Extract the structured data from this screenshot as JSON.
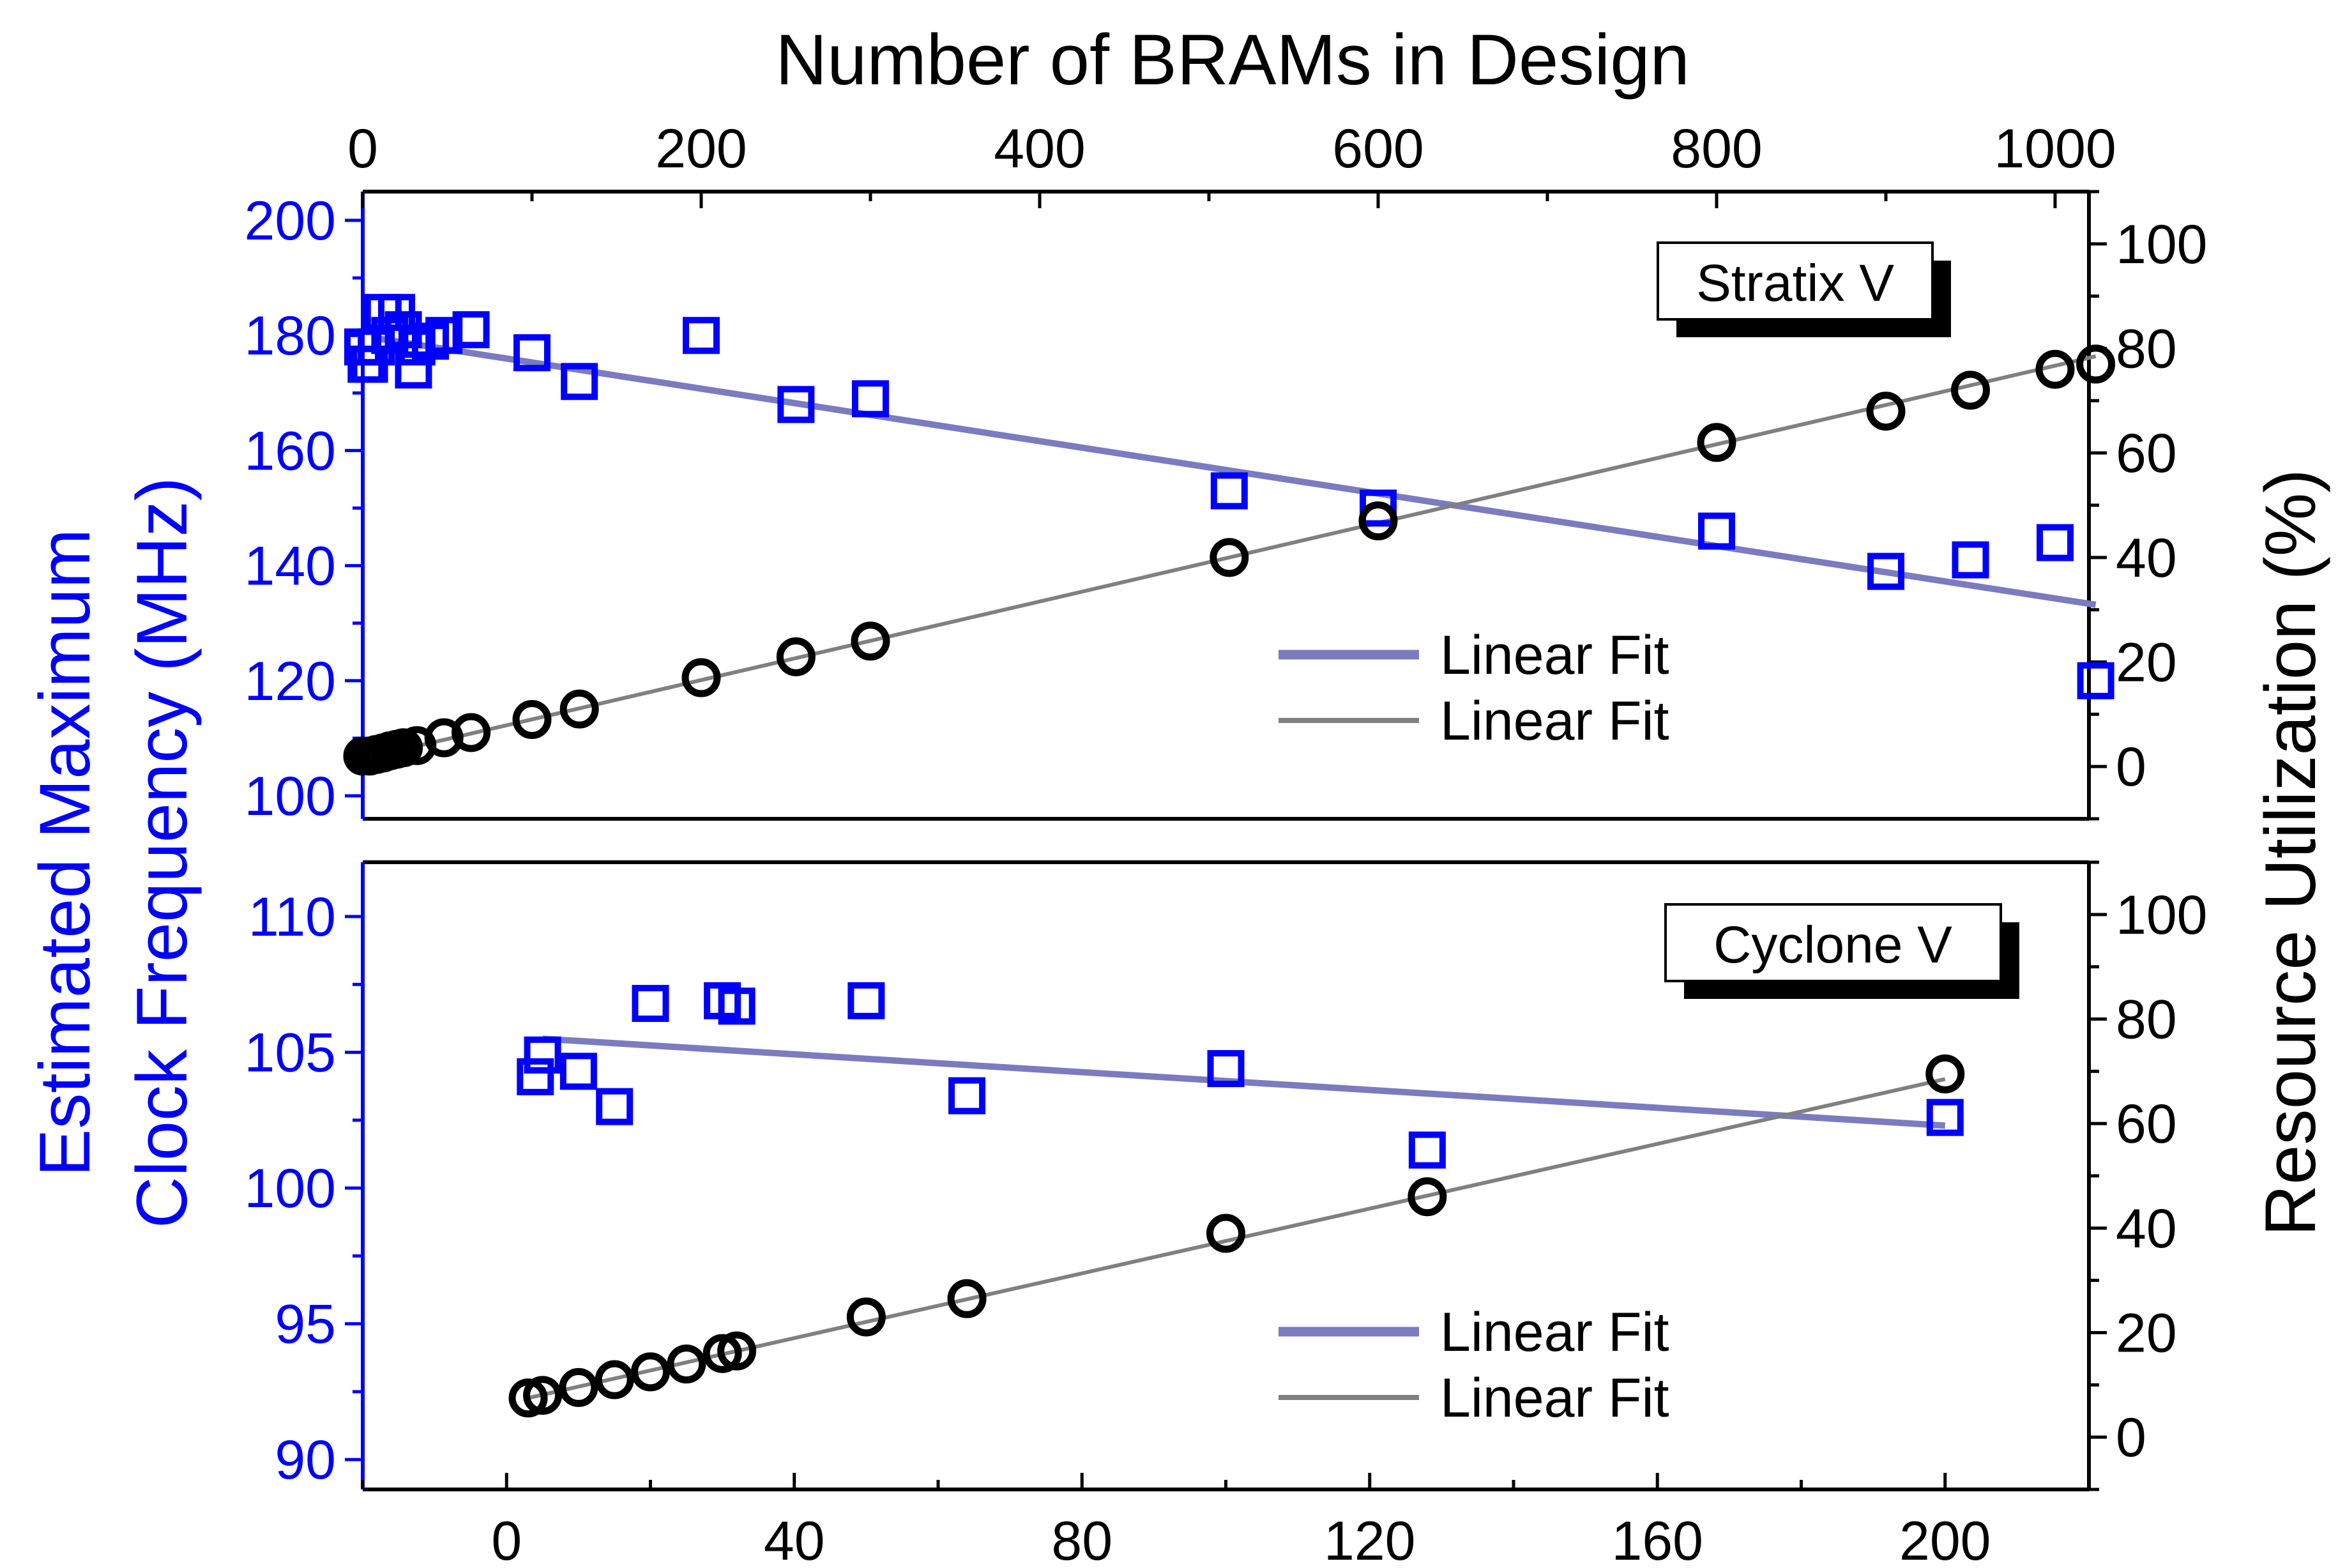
{
  "colors": {
    "frequency": "#0000ff",
    "utilization": "#000000",
    "freq_fit": "#7b7bbf",
    "util_fit": "#808080"
  },
  "axes": {
    "top_title": "Number of BRAMs in Design",
    "left_title_line1": "Estimated Maximum",
    "left_title_line2": "Clock Frequency (MHz)",
    "right_title": "Resource Utilization (%)"
  },
  "chart_data": [
    {
      "type": "scatter",
      "panel": "top",
      "label": "Stratix V",
      "x_axis": {
        "range": [
          0,
          1020
        ],
        "ticks": [
          0,
          200,
          400,
          600,
          800,
          1000
        ],
        "position": "top",
        "title": "Number of BRAMs in Design"
      },
      "y_left": {
        "range": [
          96,
          205
        ],
        "ticks": [
          100,
          120,
          140,
          160,
          180,
          200
        ],
        "title": "Estimated Maximum Clock Frequency (MHz)"
      },
      "y_right": {
        "range": [
          -10,
          110
        ],
        "ticks": [
          0,
          20,
          40,
          60,
          80,
          100
        ],
        "title": "Resource Utilization (%)"
      },
      "series": [
        {
          "name": "Estimated Maximum Clock Frequency",
          "marker": "square",
          "axis": "left",
          "x": [
            0,
            2,
            4,
            8,
            12,
            16,
            20,
            24,
            30,
            32,
            40,
            48,
            64,
            100,
            128,
            200,
            256,
            300,
            512,
            600,
            800,
            900,
            950,
            1000,
            1024
          ],
          "y": [
            178,
            175,
            175,
            178,
            184,
            180,
            184,
            181,
            174,
            178,
            179,
            180,
            181,
            177,
            172,
            180,
            168,
            169,
            153,
            150,
            146,
            139,
            141,
            144,
            120
          ]
        },
        {
          "name": "Resource Utilization",
          "marker": "circle",
          "axis": "right",
          "x": [
            0,
            4,
            8,
            12,
            16,
            20,
            24,
            32,
            48,
            64,
            100,
            128,
            200,
            256,
            300,
            512,
            600,
            800,
            900,
            950,
            1000,
            1024
          ],
          "y": [
            2,
            2,
            2.3,
            2.6,
            3,
            3.3,
            3.6,
            4,
            5.5,
            6.5,
            9,
            11,
            17,
            21,
            24,
            40,
            47,
            62,
            68,
            72,
            76,
            77
          ]
        }
      ],
      "fits": [
        {
          "name": "Linear Fit",
          "of": "Estimated Maximum Clock Frequency",
          "axis": "left",
          "x": [
            8,
            1024
          ],
          "y": [
            179.5,
            133.2
          ]
        },
        {
          "name": "Linear Fit",
          "of": "Resource Utilization",
          "axis": "right",
          "x": [
            0,
            1024
          ],
          "y": [
            1.5,
            78.5
          ]
        }
      ],
      "legend": [
        "Linear Fit",
        "Linear Fit"
      ]
    },
    {
      "type": "scatter",
      "panel": "bottom",
      "label": "Cyclone V",
      "x_axis": {
        "range": [
          -20,
          220
        ],
        "ticks": [
          0,
          40,
          80,
          120,
          160,
          200
        ],
        "position": "bottom",
        "title": ""
      },
      "y_left": {
        "range": [
          88.9,
          112
        ],
        "ticks": [
          90,
          95,
          100,
          105,
          110
        ],
        "title": "Estimated Maximum Clock Frequency (MHz)"
      },
      "y_right": {
        "range": [
          -10,
          110
        ],
        "ticks": [
          0,
          20,
          40,
          60,
          80,
          100
        ],
        "title": "Resource Utilization (%)"
      },
      "series": [
        {
          "name": "Estimated Maximum Clock Frequency",
          "marker": "square",
          "axis": "left",
          "x": [
            4,
            5,
            10,
            15,
            20,
            30,
            32,
            50,
            64,
            100,
            128,
            200
          ],
          "y": [
            104.1,
            104.9,
            104.3,
            103,
            106.8,
            106.9,
            106.7,
            106.9,
            103.4,
            104.4,
            101.4,
            102.6
          ]
        },
        {
          "name": "Resource Utilization",
          "marker": "circle",
          "axis": "right",
          "x": [
            3,
            5,
            10,
            15,
            20,
            25,
            30,
            32,
            50,
            64,
            100,
            128,
            200
          ],
          "y": [
            7.5,
            8,
            9.5,
            11,
            12.5,
            14,
            16,
            16.5,
            23,
            26.5,
            39,
            46,
            69.5
          ]
        }
      ],
      "fits": [
        {
          "name": "Linear Fit",
          "of": "Estimated Maximum Clock Frequency",
          "axis": "left",
          "x": [
            5,
            200
          ],
          "y": [
            105.5,
            102.3
          ]
        },
        {
          "name": "Linear Fit",
          "of": "Resource Utilization",
          "axis": "right",
          "x": [
            3,
            200
          ],
          "y": [
            7.5,
            68.5
          ]
        }
      ],
      "legend": [
        "Linear Fit",
        "Linear Fit"
      ]
    }
  ]
}
